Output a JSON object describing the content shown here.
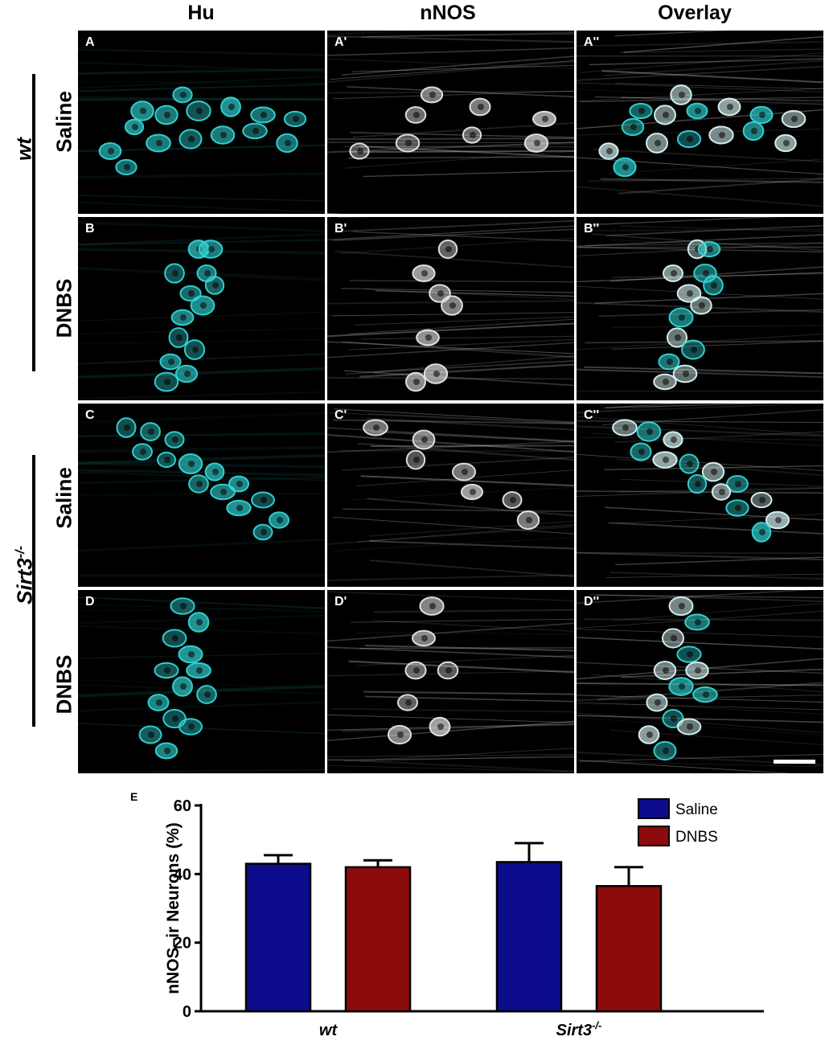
{
  "columns": [
    "Hu",
    "nNOS",
    "Overlay"
  ],
  "groups": [
    {
      "label": "wt",
      "label_html": "wt",
      "rows": [
        "Saline",
        "DNBS"
      ]
    },
    {
      "label": "Sirt3-/-",
      "rows": [
        "Saline",
        "DNBS"
      ]
    }
  ],
  "panel_labels": [
    [
      "A",
      "A'",
      "A''"
    ],
    [
      "B",
      "B'",
      "B''"
    ],
    [
      "C",
      "C'",
      "C''"
    ],
    [
      "D",
      "D'",
      "D''"
    ]
  ],
  "colors": {
    "hu_channel": "#33d6d6",
    "nnos_channel": "#e6e6e6",
    "saline": "#0c0c8c",
    "dnbs": "#8c0c0c"
  },
  "chart_data": {
    "type": "bar",
    "panel_label": "E",
    "categories": [
      "wt",
      "Sirt3-/-"
    ],
    "series": [
      {
        "name": "Saline",
        "color": "#0c0c8c",
        "values": [
          43,
          43.5
        ],
        "errors": [
          2.5,
          5.5
        ]
      },
      {
        "name": "DNBS",
        "color": "#8c0c0c",
        "values": [
          42,
          36.5
        ],
        "errors": [
          2,
          5.5
        ]
      }
    ],
    "ylabel": "nNOS–ir Neurons (%)",
    "xlabel": "",
    "ylim": [
      0,
      60
    ],
    "yticks": [
      0,
      20,
      40,
      60
    ],
    "legend_position": "top-right",
    "grid": false
  }
}
